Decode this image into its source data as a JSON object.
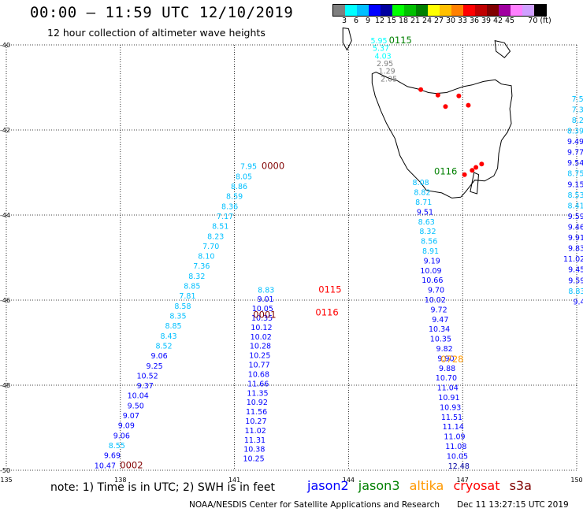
{
  "header": {
    "title": "00:00 – 11:59 UTC 12/10/2019",
    "subtitle": "12 hour collection of altimeter wave heights"
  },
  "colorbar": {
    "colors": [
      "#7f7f7f",
      "#00ffff",
      "#00bfff",
      "#0000ff",
      "#0000a0",
      "#00ff00",
      "#00c000",
      "#008000",
      "#ffff00",
      "#ffc000",
      "#ff8000",
      "#ff0000",
      "#c00000",
      "#800000",
      "#a000a0",
      "#ff80ff",
      "#d0a0ff",
      "#000000"
    ],
    "labels": [
      "3",
      "6",
      "9",
      "12",
      "15",
      "18",
      "21",
      "24",
      "27",
      "30",
      "33",
      "36",
      "39",
      "42",
      "45",
      "70 (ft)"
    ]
  },
  "axes": {
    "lat_labels": [
      "-40",
      "-42",
      "-44",
      "-46",
      "-48",
      "-50"
    ],
    "lon_labels": [
      "135",
      "138",
      "141",
      "144",
      "147",
      "150"
    ]
  },
  "tracks": [
    {
      "satellite": "jason2",
      "time": "0000",
      "time_color": "#800000",
      "values": [
        "7.95",
        "8.05",
        "8.86",
        "8.59",
        "8.36",
        "7.17",
        "8.51",
        "8.23",
        "7.70",
        "8.10",
        "7.36",
        "8.32",
        "8.85",
        "7.81",
        "8.58",
        "8.35",
        "8.85",
        "8.43",
        "8.52",
        "9.06",
        "9.25",
        "10.52",
        "9.37",
        "10.04",
        "9.50",
        "9.07",
        "9.09",
        "9.06",
        "8.55",
        "9.69",
        "10.47"
      ]
    },
    {
      "satellite": "jason2",
      "time": "0001",
      "time_color": "#800000",
      "values": [
        "8.83",
        "9.01",
        "10.05",
        "10.35",
        "10.12",
        "10.02",
        "10.28",
        "10.25",
        "10.77",
        "10.68",
        "11.66",
        "11.35",
        "10.92",
        "11.56",
        "10.27",
        "11.02",
        "11.31",
        "10.38",
        "10.25"
      ]
    },
    {
      "satellite": "jason2",
      "time": "0002",
      "time_color": "#800000",
      "values": []
    },
    {
      "satellite": "cryosat",
      "time": "0115",
      "time_color": "#ff0000",
      "values": []
    },
    {
      "satellite": "cryosat",
      "time": "0116",
      "time_color": "#ff0000",
      "values": []
    },
    {
      "satellite": "jason3",
      "time": "0115",
      "time_color": "#008000",
      "values": [
        "5.95",
        "5.37",
        "4.03",
        "2.95",
        "1.29",
        "2.05"
      ]
    },
    {
      "satellite": "jason3",
      "time": "0116",
      "time_color": "#008000",
      "values": [
        "8.08",
        "8.82",
        "8.71",
        "9.51",
        "8.63",
        "8.32",
        "8.56",
        "8.91",
        "9.19",
        "10.09",
        "10.66",
        "9.70",
        "10.02",
        "9.72",
        "9.47",
        "10.34",
        "10.35",
        "9.82",
        "9.90",
        "9.88",
        "10.70",
        "11.04",
        "10.91",
        "10.93",
        "11.51",
        "11.14",
        "11.09",
        "11.08",
        "10.05",
        "12.48"
      ]
    },
    {
      "satellite": "altika",
      "time": "0728",
      "time_color": "#ff9900",
      "values": []
    },
    {
      "satellite": "jason3",
      "time": "",
      "time_color": "#008000",
      "values": [
        "7.5",
        "7.3",
        "8.2",
        "8.39",
        "9.49",
        "9.77",
        "9.54",
        "8.75",
        "9.15",
        "8.53",
        "8.41",
        "9.59",
        "9.46",
        "9.91",
        "9.83",
        "11.02",
        "9.45",
        "9.59",
        "8.83",
        "9.4"
      ]
    }
  ],
  "legend": {
    "note": "note: 1) Time is in UTC; 2) SWH is in feet",
    "satellites": [
      {
        "name": "jason2",
        "color": "#0000ff"
      },
      {
        "name": "jason3",
        "color": "#008000"
      },
      {
        "name": "altika",
        "color": "#ff9900"
      },
      {
        "name": "cryosat",
        "color": "#ff0000"
      },
      {
        "name": "s3a",
        "color": "#800000"
      }
    ]
  },
  "footer": {
    "credit": "NOAA/NESDIS Center for Satellite Applications and Research",
    "timestamp": "Dec 11 13:27:15 UTC 2019"
  }
}
